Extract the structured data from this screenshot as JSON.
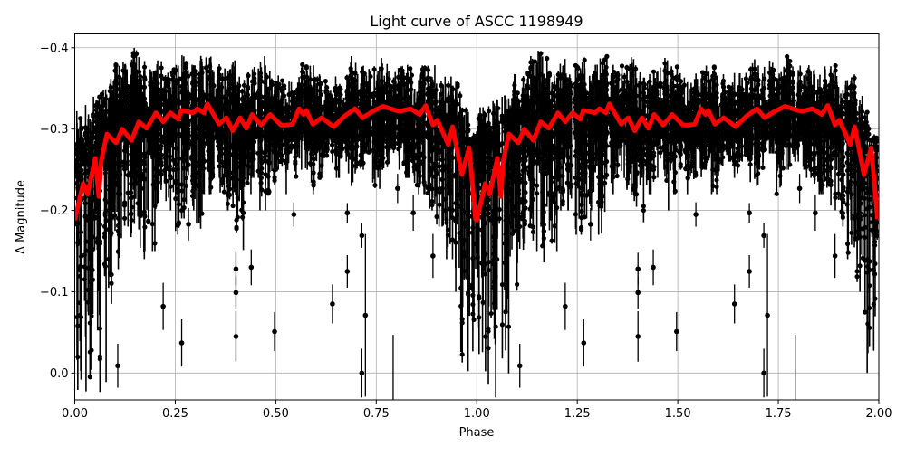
{
  "chart_data": {
    "type": "scatter",
    "title": "Light curve of ASCC 1198949",
    "xlabel": "Phase",
    "ylabel": "Δ Magnitude",
    "xlim": [
      0,
      2
    ],
    "ylim": [
      0.033,
      -0.417
    ],
    "y_inverted": true,
    "grid": true,
    "x_ticks": [
      "0.00",
      "0.25",
      "0.50",
      "0.75",
      "1.00",
      "1.25",
      "1.50",
      "1.75",
      "2.00"
    ],
    "x_tick_values": [
      0,
      0.25,
      0.5,
      0.75,
      1,
      1.25,
      1.5,
      1.75,
      2
    ],
    "y_ticks": [
      "−0.4",
      "−0.3",
      "−0.2",
      "−0.1",
      "0.0"
    ],
    "y_tick_values": [
      -0.4,
      -0.3,
      -0.2,
      -0.1,
      0.0
    ],
    "colors": {
      "observations": "#000000",
      "model": "#ff0000",
      "grid": "#b0b0b0"
    },
    "folded_cycles_shown": 2,
    "observation_band": {
      "phase": [
        0.0,
        0.02,
        0.04,
        0.06,
        0.08,
        0.1,
        0.12,
        0.14,
        0.16,
        0.18,
        0.2,
        0.22,
        0.24,
        0.26,
        0.28,
        0.3,
        0.32,
        0.34,
        0.36,
        0.38,
        0.4,
        0.42,
        0.44,
        0.46,
        0.48,
        0.5,
        0.52,
        0.54,
        0.56,
        0.58,
        0.6,
        0.62,
        0.64,
        0.66,
        0.68,
        0.7,
        0.72,
        0.74,
        0.76,
        0.78,
        0.8,
        0.82,
        0.84,
        0.86,
        0.88,
        0.9,
        0.92,
        0.94,
        0.96,
        0.98
      ],
      "brightest": [
        -0.33,
        -0.33,
        -0.34,
        -0.35,
        -0.37,
        -0.38,
        -0.39,
        -0.4,
        -0.39,
        -0.38,
        -0.39,
        -0.37,
        -0.38,
        -0.4,
        -0.38,
        -0.39,
        -0.39,
        -0.38,
        -0.38,
        -0.39,
        -0.37,
        -0.37,
        -0.38,
        -0.39,
        -0.38,
        -0.37,
        -0.36,
        -0.37,
        -0.38,
        -0.38,
        -0.37,
        -0.36,
        -0.37,
        -0.37,
        -0.39,
        -0.38,
        -0.39,
        -0.38,
        -0.39,
        -0.38,
        -0.38,
        -0.38,
        -0.37,
        -0.38,
        -0.38,
        -0.36,
        -0.37,
        -0.36,
        -0.33,
        -0.3
      ],
      "faintest": [
        0.03,
        0.03,
        0.03,
        0.03,
        -0.08,
        -0.12,
        -0.18,
        -0.15,
        -0.13,
        -0.15,
        -0.2,
        -0.2,
        -0.17,
        -0.19,
        -0.2,
        -0.17,
        -0.22,
        -0.24,
        -0.22,
        -0.2,
        -0.15,
        -0.22,
        -0.24,
        -0.2,
        -0.22,
        -0.25,
        -0.22,
        -0.24,
        -0.25,
        -0.22,
        -0.24,
        -0.26,
        -0.24,
        -0.26,
        -0.23,
        -0.25,
        -0.27,
        -0.22,
        -0.25,
        -0.26,
        -0.25,
        -0.24,
        -0.22,
        -0.22,
        -0.2,
        -0.18,
        -0.14,
        -0.1,
        0.03,
        0.03
      ]
    },
    "isolated_points": [
      {
        "phase": 0.107,
        "mag": -0.009,
        "err": 0.027
      },
      {
        "phase": 0.22,
        "mag": -0.082,
        "err": 0.029
      },
      {
        "phase": 0.266,
        "mag": -0.037,
        "err": 0.029
      },
      {
        "phase": 0.283,
        "mag": -0.183,
        "err": 0.02
      },
      {
        "phase": 0.401,
        "mag": -0.045,
        "err": 0.031
      },
      {
        "phase": 0.401,
        "mag": -0.099,
        "err": 0.02
      },
      {
        "phase": 0.401,
        "mag": -0.128,
        "err": 0.02
      },
      {
        "phase": 0.439,
        "mag": -0.13,
        "err": 0.022
      },
      {
        "phase": 0.497,
        "mag": -0.051,
        "err": 0.024
      },
      {
        "phase": 0.545,
        "mag": -0.195,
        "err": 0.015
      },
      {
        "phase": 0.641,
        "mag": -0.085,
        "err": 0.024
      },
      {
        "phase": 0.678,
        "mag": -0.125,
        "err": 0.02
      },
      {
        "phase": 0.678,
        "mag": -0.197,
        "err": 0.012
      },
      {
        "phase": 0.714,
        "mag": 0.0,
        "err": 0.03
      },
      {
        "phase": 0.714,
        "mag": -0.169,
        "err": 0.015
      },
      {
        "phase": 0.723,
        "mag": -0.071,
        "err": 0.1
      },
      {
        "phase": 0.792,
        "mag": 0.04,
        "err": 0.087
      },
      {
        "phase": 0.803,
        "mag": -0.227,
        "err": 0.018
      },
      {
        "phase": 0.842,
        "mag": -0.197,
        "err": 0.022
      },
      {
        "phase": 0.891,
        "mag": -0.144,
        "err": 0.027
      }
    ],
    "model": {
      "phase": [
        0.0,
        0.021,
        0.032,
        0.051,
        0.06,
        0.066,
        0.08,
        0.103,
        0.118,
        0.141,
        0.159,
        0.179,
        0.202,
        0.22,
        0.238,
        0.258,
        0.265,
        0.294,
        0.305,
        0.321,
        0.33,
        0.359,
        0.377,
        0.393,
        0.411,
        0.427,
        0.441,
        0.464,
        0.486,
        0.513,
        0.528,
        0.542,
        0.558,
        0.569,
        0.576,
        0.592,
        0.614,
        0.644,
        0.671,
        0.697,
        0.716,
        0.742,
        0.767,
        0.798,
        0.81,
        0.835,
        0.858,
        0.873,
        0.891,
        0.902,
        0.929,
        0.94,
        0.963,
        0.981,
        0.997
      ],
      "mag": [
        -0.188,
        -0.233,
        -0.22,
        -0.264,
        -0.217,
        -0.261,
        -0.294,
        -0.283,
        -0.3,
        -0.286,
        -0.309,
        -0.301,
        -0.32,
        -0.309,
        -0.32,
        -0.312,
        -0.323,
        -0.32,
        -0.325,
        -0.32,
        -0.331,
        -0.306,
        -0.314,
        -0.298,
        -0.314,
        -0.301,
        -0.318,
        -0.305,
        -0.318,
        -0.305,
        -0.305,
        -0.306,
        -0.325,
        -0.318,
        -0.323,
        -0.306,
        -0.314,
        -0.303,
        -0.316,
        -0.325,
        -0.314,
        -0.322,
        -0.328,
        -0.323,
        -0.322,
        -0.325,
        -0.318,
        -0.329,
        -0.305,
        -0.311,
        -0.281,
        -0.303,
        -0.244,
        -0.277,
        -0.189
      ]
    }
  }
}
